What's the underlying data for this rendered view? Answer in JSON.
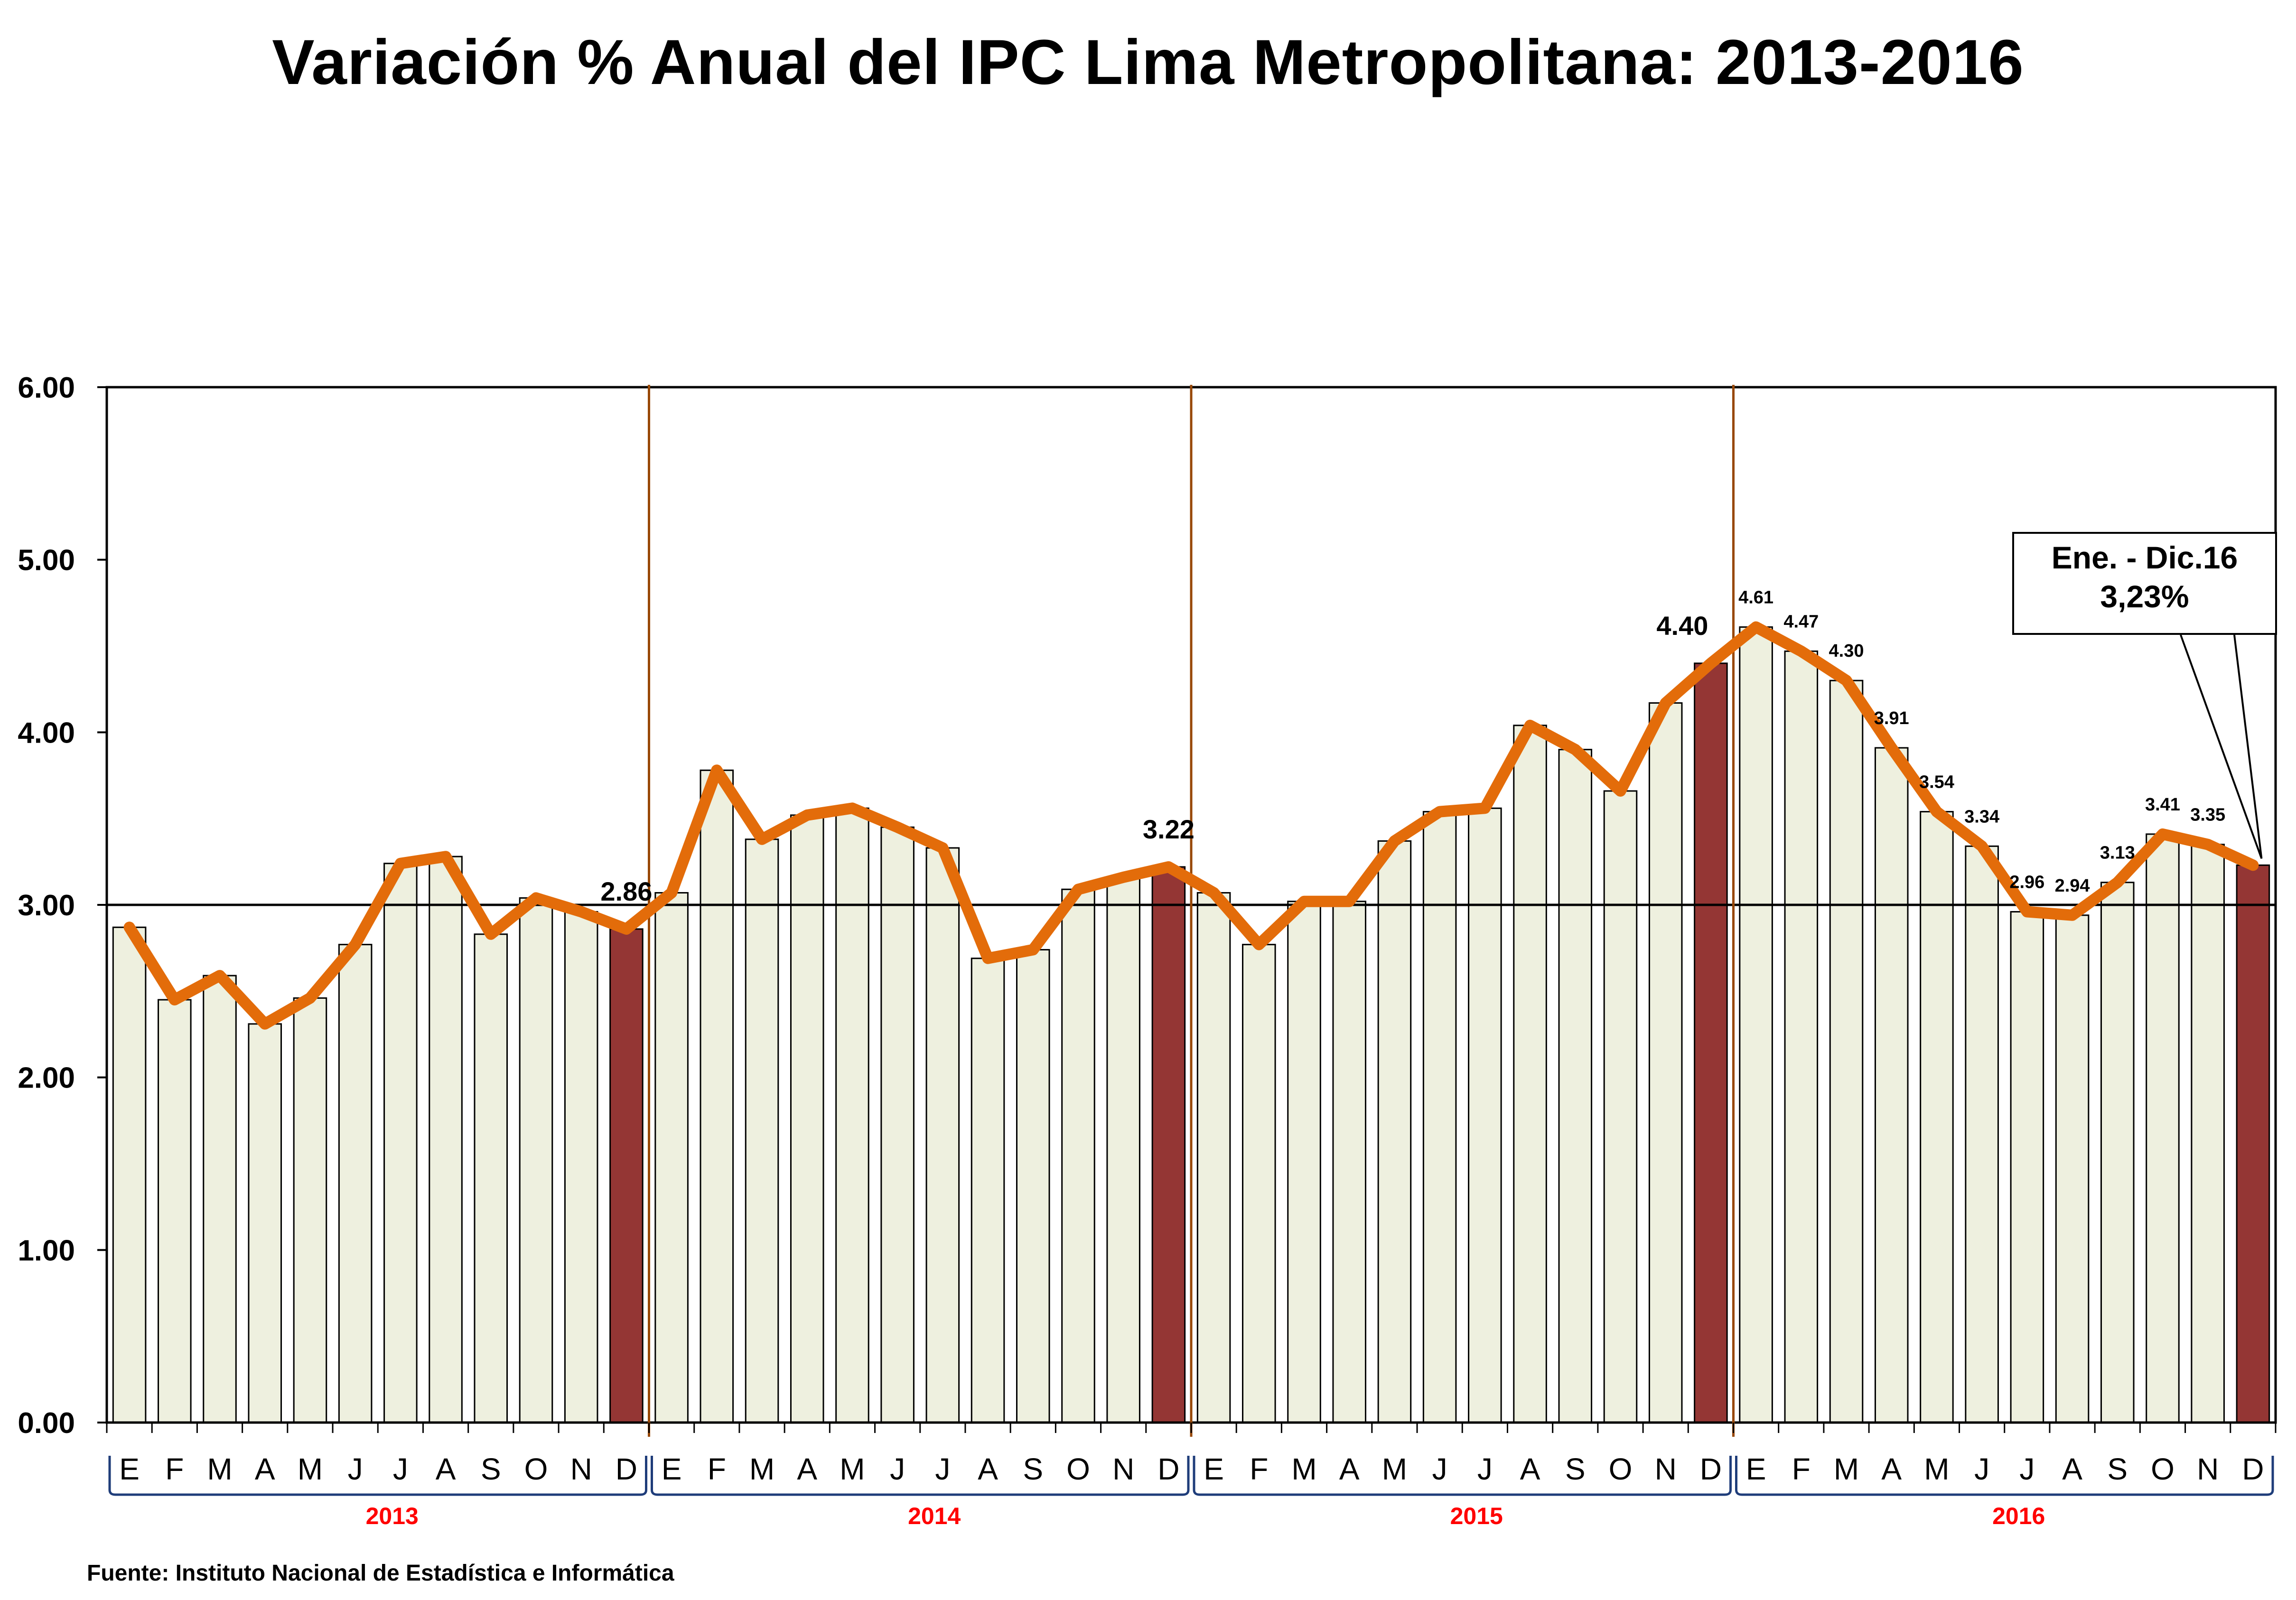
{
  "chart_data": {
    "type": "bar",
    "title": "Variación % Anual del IPC Lima Metropolitana: 2013-2016",
    "source": "Fuente: Instituto Nacional de Estadística e Informática",
    "ylim": [
      0,
      6
    ],
    "yticks": [
      "0.00",
      "1.00",
      "2.00",
      "3.00",
      "4.00",
      "5.00",
      "6.00"
    ],
    "reference_line": 3.0,
    "years": [
      "2013",
      "2014",
      "2015",
      "2016"
    ],
    "months": [
      "E",
      "F",
      "M",
      "A",
      "M",
      "J",
      "J",
      "A",
      "S",
      "O",
      "N",
      "D"
    ],
    "series": [
      {
        "values": [
          2.87,
          2.45,
          2.59,
          2.31,
          2.46,
          2.77,
          3.24,
          3.28,
          2.83,
          3.04,
          2.96,
          2.86,
          3.07,
          3.78,
          3.38,
          3.52,
          3.56,
          3.45,
          3.33,
          2.69,
          2.74,
          3.09,
          3.16,
          3.22,
          3.07,
          2.77,
          3.02,
          3.02,
          3.37,
          3.54,
          3.56,
          4.04,
          3.9,
          3.66,
          4.17,
          4.4,
          4.61,
          4.47,
          4.3,
          3.91,
          3.54,
          3.34,
          2.96,
          2.94,
          3.13,
          3.41,
          3.35,
          3.23
        ]
      }
    ],
    "highlight_indices": [
      11,
      23,
      35,
      47
    ],
    "data_labels": [
      {
        "index": 11,
        "text": "2.86"
      },
      {
        "index": 23,
        "text": "3.22"
      },
      {
        "index": 35,
        "text": "4.40"
      },
      {
        "index": 36,
        "text": "4.61"
      },
      {
        "index": 37,
        "text": "4.47"
      },
      {
        "index": 38,
        "text": "4.30"
      },
      {
        "index": 39,
        "text": "3.91"
      },
      {
        "index": 40,
        "text": "3.54"
      },
      {
        "index": 41,
        "text": "3.34"
      },
      {
        "index": 42,
        "text": "2.96"
      },
      {
        "index": 43,
        "text": "2.94"
      },
      {
        "index": 44,
        "text": "3.13"
      },
      {
        "index": 45,
        "text": "3.41"
      },
      {
        "index": 46,
        "text": "3.35"
      }
    ],
    "callout": {
      "line1": "Ene. - Dic.16",
      "line2": "3,23%"
    },
    "colors": {
      "bar": "#eef0df",
      "bar_highlight": "#943634",
      "line": "#e36c0a",
      "year_label": "#ff0000",
      "bracket": "#1f3d7a",
      "divider": "#984807"
    },
    "grid": false,
    "legend": "none"
  }
}
